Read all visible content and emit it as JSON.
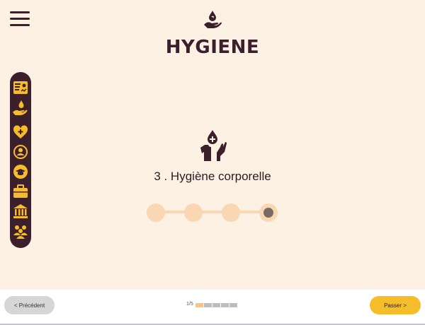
{
  "header": {
    "title": "HYGIENE",
    "menu_icon": "hamburger-menu-icon",
    "section_icon": "hand-water-drop-icon"
  },
  "sidebar": {
    "items": [
      {
        "name": "id-card-icon",
        "active": false
      },
      {
        "name": "hand-water-drop-icon",
        "active": true
      },
      {
        "name": "heart-plus-icon",
        "active": false
      },
      {
        "name": "person-refresh-icon",
        "active": false
      },
      {
        "name": "graduation-cap-icon",
        "active": false
      },
      {
        "name": "briefcase-icon",
        "active": false
      },
      {
        "name": "bank-icon",
        "active": false
      },
      {
        "name": "people-group-icon",
        "active": false
      }
    ],
    "background": "#3b1f2b",
    "icon_color": "#f6bd2a"
  },
  "step": {
    "icon": "body-hygiene-icon",
    "label": "3 . Hygiène corporelle",
    "dots_total": 4,
    "active_dot": 4
  },
  "footer": {
    "prev_label": "< Précédent",
    "next_label": "Passer >",
    "page_indicator": "1/5",
    "segments_total": 5,
    "segments_filled": 1
  },
  "colors": {
    "background": "#fdf1e4",
    "accent": "#f6bd2a",
    "dark": "#3b1f2b",
    "dot": "#f8d7b2"
  }
}
